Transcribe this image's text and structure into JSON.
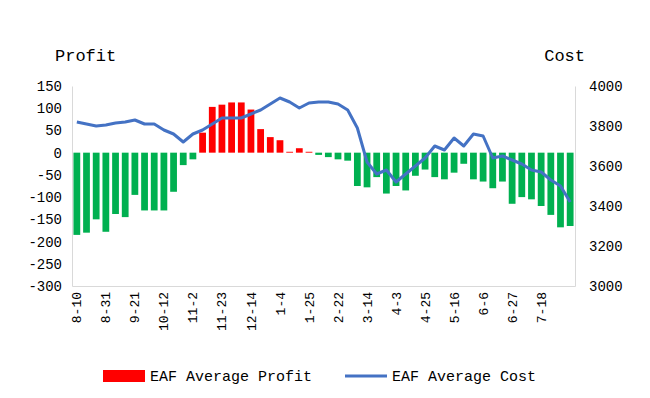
{
  "chart_data": {
    "type": "bar",
    "ylabel": "Profit",
    "y2label": "Cost",
    "categories": [
      "8-10",
      null,
      null,
      "8-31",
      null,
      null,
      "9-21",
      null,
      null,
      "10-12",
      null,
      null,
      "11-2",
      null,
      null,
      "11-23",
      null,
      null,
      "12-14",
      null,
      null,
      "1-4",
      null,
      null,
      "1-25",
      null,
      null,
      "2-22",
      null,
      null,
      "3-14",
      null,
      null,
      "4-3",
      null,
      null,
      "4-25",
      null,
      null,
      "5-16",
      null,
      null,
      "6-6",
      null,
      null,
      "6-27",
      null,
      null,
      "7-18",
      null,
      null,
      null
    ],
    "series": [
      {
        "name": "EAF Average Profit",
        "type": "bar",
        "color": "#ff0000",
        "colors": [
          "#00b050",
          "#00b050",
          "#00b050",
          "#00b050",
          "#00b050",
          "#00b050",
          "#00b050",
          "#00b050",
          "#00b050",
          "#00b050",
          "#00b050",
          "#00b050",
          "#00b050",
          "#ff0000",
          "#ff0000",
          "#ff0000",
          "#ff0000",
          "#ff0000",
          "#ff0000",
          "#ff0000",
          "#ff0000",
          "#ff0000",
          "#ff0000",
          "#ff0000",
          "#ff0000",
          "#00b050",
          "#00b050",
          "#00b050",
          "#00b050",
          "#00b050",
          "#00b050",
          "#00b050",
          "#00b050",
          "#00b050",
          "#00b050",
          "#00b050",
          "#00b050",
          "#00b050",
          "#00b050",
          "#00b050",
          "#00b050",
          "#00b050",
          "#00b050",
          "#00b050",
          "#00b050",
          "#00b050",
          "#00b050",
          "#00b050",
          "#00b050",
          "#00b050",
          "#00b050",
          "#00b050"
        ],
        "values": [
          -185,
          -180,
          -150,
          -178,
          -138,
          -145,
          -95,
          -130,
          -130,
          -130,
          -88,
          -28,
          -15,
          45,
          103,
          108,
          113,
          113,
          97,
          53,
          35,
          28,
          2,
          10,
          2,
          -5,
          -10,
          -15,
          -18,
          -75,
          -78,
          -55,
          -92,
          -75,
          -85,
          -52,
          -38,
          -55,
          -60,
          -45,
          -25,
          -60,
          -65,
          -80,
          -65,
          -115,
          -100,
          -105,
          -120,
          -140,
          -168,
          -165
        ]
      },
      {
        "name": "EAF Average Cost",
        "type": "line",
        "axis": "y2",
        "color": "#4472c4",
        "values": [
          3820,
          3810,
          3800,
          3805,
          3815,
          3820,
          3830,
          3810,
          3810,
          3780,
          3760,
          3720,
          3760,
          3780,
          3810,
          3840,
          3840,
          3840,
          3860,
          3880,
          3910,
          3940,
          3920,
          3890,
          3915,
          3920,
          3920,
          3910,
          3880,
          3790,
          3620,
          3560,
          3580,
          3520,
          3560,
          3600,
          3640,
          3700,
          3680,
          3740,
          3700,
          3760,
          3750,
          3640,
          3650,
          3630,
          3610,
          3580,
          3570,
          3530,
          3500,
          3420
        ]
      }
    ],
    "ylim": [
      -300,
      150
    ],
    "yticks": [
      -300,
      -250,
      -200,
      -150,
      -100,
      -50,
      0,
      50,
      100,
      150
    ],
    "y2lim": [
      3000,
      4000
    ],
    "y2ticks": [
      3000,
      3200,
      3400,
      3600,
      3800,
      4000
    ],
    "legend": "bottom"
  }
}
